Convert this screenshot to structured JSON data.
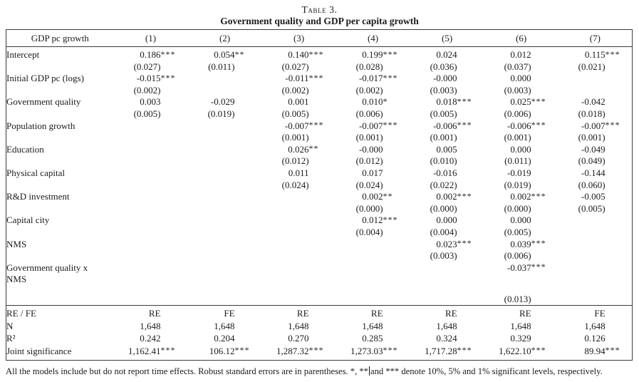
{
  "caption": {
    "number": "Table 3.",
    "title": "Government quality and GDP per capita growth"
  },
  "header": {
    "dep_var": "GDP pc growth",
    "models": [
      "(1)",
      "(2)",
      "(3)",
      "(4)",
      "(5)",
      "(6)",
      "(7)"
    ]
  },
  "body_rows": [
    {
      "label": "Intercept",
      "coef": [
        "0.186",
        "0.054",
        "0.140",
        "0.199",
        "0.024",
        "0.012",
        "0.115"
      ],
      "sig": [
        "***",
        "**",
        "***",
        "***",
        "",
        "",
        "***"
      ],
      "se": [
        "(0.027)",
        "(0.011)",
        "(0.027)",
        "(0.028)",
        "(0.036)",
        "(0.037)",
        "(0.021)"
      ]
    },
    {
      "label": "Initial GDP pc (logs)",
      "coef": [
        "-0.015",
        "",
        "-0.011",
        "-0.017",
        "-0.000",
        "0.000",
        ""
      ],
      "sig": [
        "***",
        "",
        "***",
        "***",
        "",
        "",
        ""
      ],
      "se": [
        "(0.002)",
        "",
        "(0.002)",
        "(0.002)",
        "(0.003)",
        "(0.003)",
        ""
      ]
    },
    {
      "label": "Government quality",
      "coef": [
        "0.003",
        "-0.029",
        "0.001",
        "0.010",
        "0.018",
        "0.025",
        "-0.042"
      ],
      "sig": [
        "",
        "",
        "",
        "*",
        "***",
        "***",
        ""
      ],
      "se": [
        "(0.005)",
        "(0.019)",
        "(0.005)",
        "(0.006)",
        "(0.005)",
        "(0.006)",
        "(0.018)"
      ]
    },
    {
      "label": "Population growth",
      "coef": [
        "",
        "",
        "-0.007",
        "-0.007",
        "-0.006",
        "-0.006",
        "-0.007"
      ],
      "sig": [
        "",
        "",
        "***",
        "***",
        "***",
        "***",
        "***"
      ],
      "se": [
        "",
        "",
        "(0.001)",
        "(0.001)",
        "(0.001)",
        "(0.001)",
        "(0.001)"
      ]
    },
    {
      "label": "Education",
      "coef": [
        "",
        "",
        "0.026",
        "-0.000",
        "0.005",
        "0.000",
        "-0.049"
      ],
      "sig": [
        "",
        "",
        "**",
        "",
        "",
        "",
        ""
      ],
      "se": [
        "",
        "",
        "(0.012)",
        "(0.012)",
        "(0.010)",
        "(0.011)",
        "(0.049)"
      ]
    },
    {
      "label": "Physical capital",
      "coef": [
        "",
        "",
        "0.011",
        "0.017",
        "-0.016",
        "-0.019",
        "-0.144"
      ],
      "sig": [
        "",
        "",
        "",
        "",
        "",
        "",
        ""
      ],
      "se": [
        "",
        "",
        "(0.024)",
        "(0.024)",
        "(0.022)",
        "(0.019)",
        "(0.060)"
      ]
    },
    {
      "label": "R&D investment",
      "coef": [
        "",
        "",
        "",
        "0.002",
        "0.002",
        "0.002",
        "-0.005"
      ],
      "sig": [
        "",
        "",
        "",
        "**",
        "***",
        "***",
        ""
      ],
      "se": [
        "",
        "",
        "",
        "(0.000)",
        "(0.000)",
        "(0.000)",
        "(0.005)"
      ]
    },
    {
      "label": "Capital city",
      "coef": [
        "",
        "",
        "",
        "0.012",
        "0.000",
        "0.000",
        ""
      ],
      "sig": [
        "",
        "",
        "",
        "***",
        "",
        "",
        ""
      ],
      "se": [
        "",
        "",
        "",
        "(0.004)",
        "(0.004)",
        "(0.005)",
        ""
      ]
    },
    {
      "label": "NMS",
      "coef": [
        "",
        "",
        "",
        "",
        "0.023",
        "0.039",
        ""
      ],
      "sig": [
        "",
        "",
        "",
        "",
        "***",
        "***",
        ""
      ],
      "se": [
        "",
        "",
        "",
        "",
        "(0.003)",
        "(0.006)",
        ""
      ]
    },
    {
      "label": "Government quality x",
      "label_line2": "NMS",
      "coef": [
        "",
        "",
        "",
        "",
        "",
        "-0.037",
        ""
      ],
      "sig": [
        "",
        "",
        "",
        "",
        "",
        "***",
        ""
      ],
      "se": [
        "",
        "",
        "",
        "",
        "",
        "(0.013)",
        ""
      ]
    }
  ],
  "summary_rows": [
    {
      "label": "RE / FE",
      "values": [
        "RE",
        "FE",
        "RE",
        "RE",
        "RE",
        "RE",
        "FE"
      ],
      "stars": [
        "",
        "",
        "",
        "",
        "",
        "",
        ""
      ]
    },
    {
      "label": "N",
      "values": [
        "1,648",
        "1,648",
        "1,648",
        "1,648",
        "1,648",
        "1,648",
        "1,648"
      ],
      "stars": [
        "",
        "",
        "",
        "",
        "",
        "",
        ""
      ]
    },
    {
      "label": "R²",
      "values": [
        "0.242",
        "0.204",
        "0.270",
        "0.285",
        "0.324",
        "0.329",
        "0.126"
      ],
      "stars": [
        "",
        "",
        "",
        "",
        "",
        "",
        ""
      ]
    },
    {
      "label": "Joint significance",
      "values": [
        "1,162.41",
        "106.12",
        "1,287.32",
        "1,273.03",
        "1,717.28",
        "1,622.10",
        "89.94"
      ],
      "stars": [
        "***",
        "***",
        "***",
        "***",
        "***",
        "***",
        "***"
      ]
    }
  ],
  "footnote": {
    "part1": "All the models include but do not report time effects. Robust standard errors are in parentheses. *, **",
    "part2": "and *** denote 10%, 5% and 1% significant levels, respectively."
  }
}
